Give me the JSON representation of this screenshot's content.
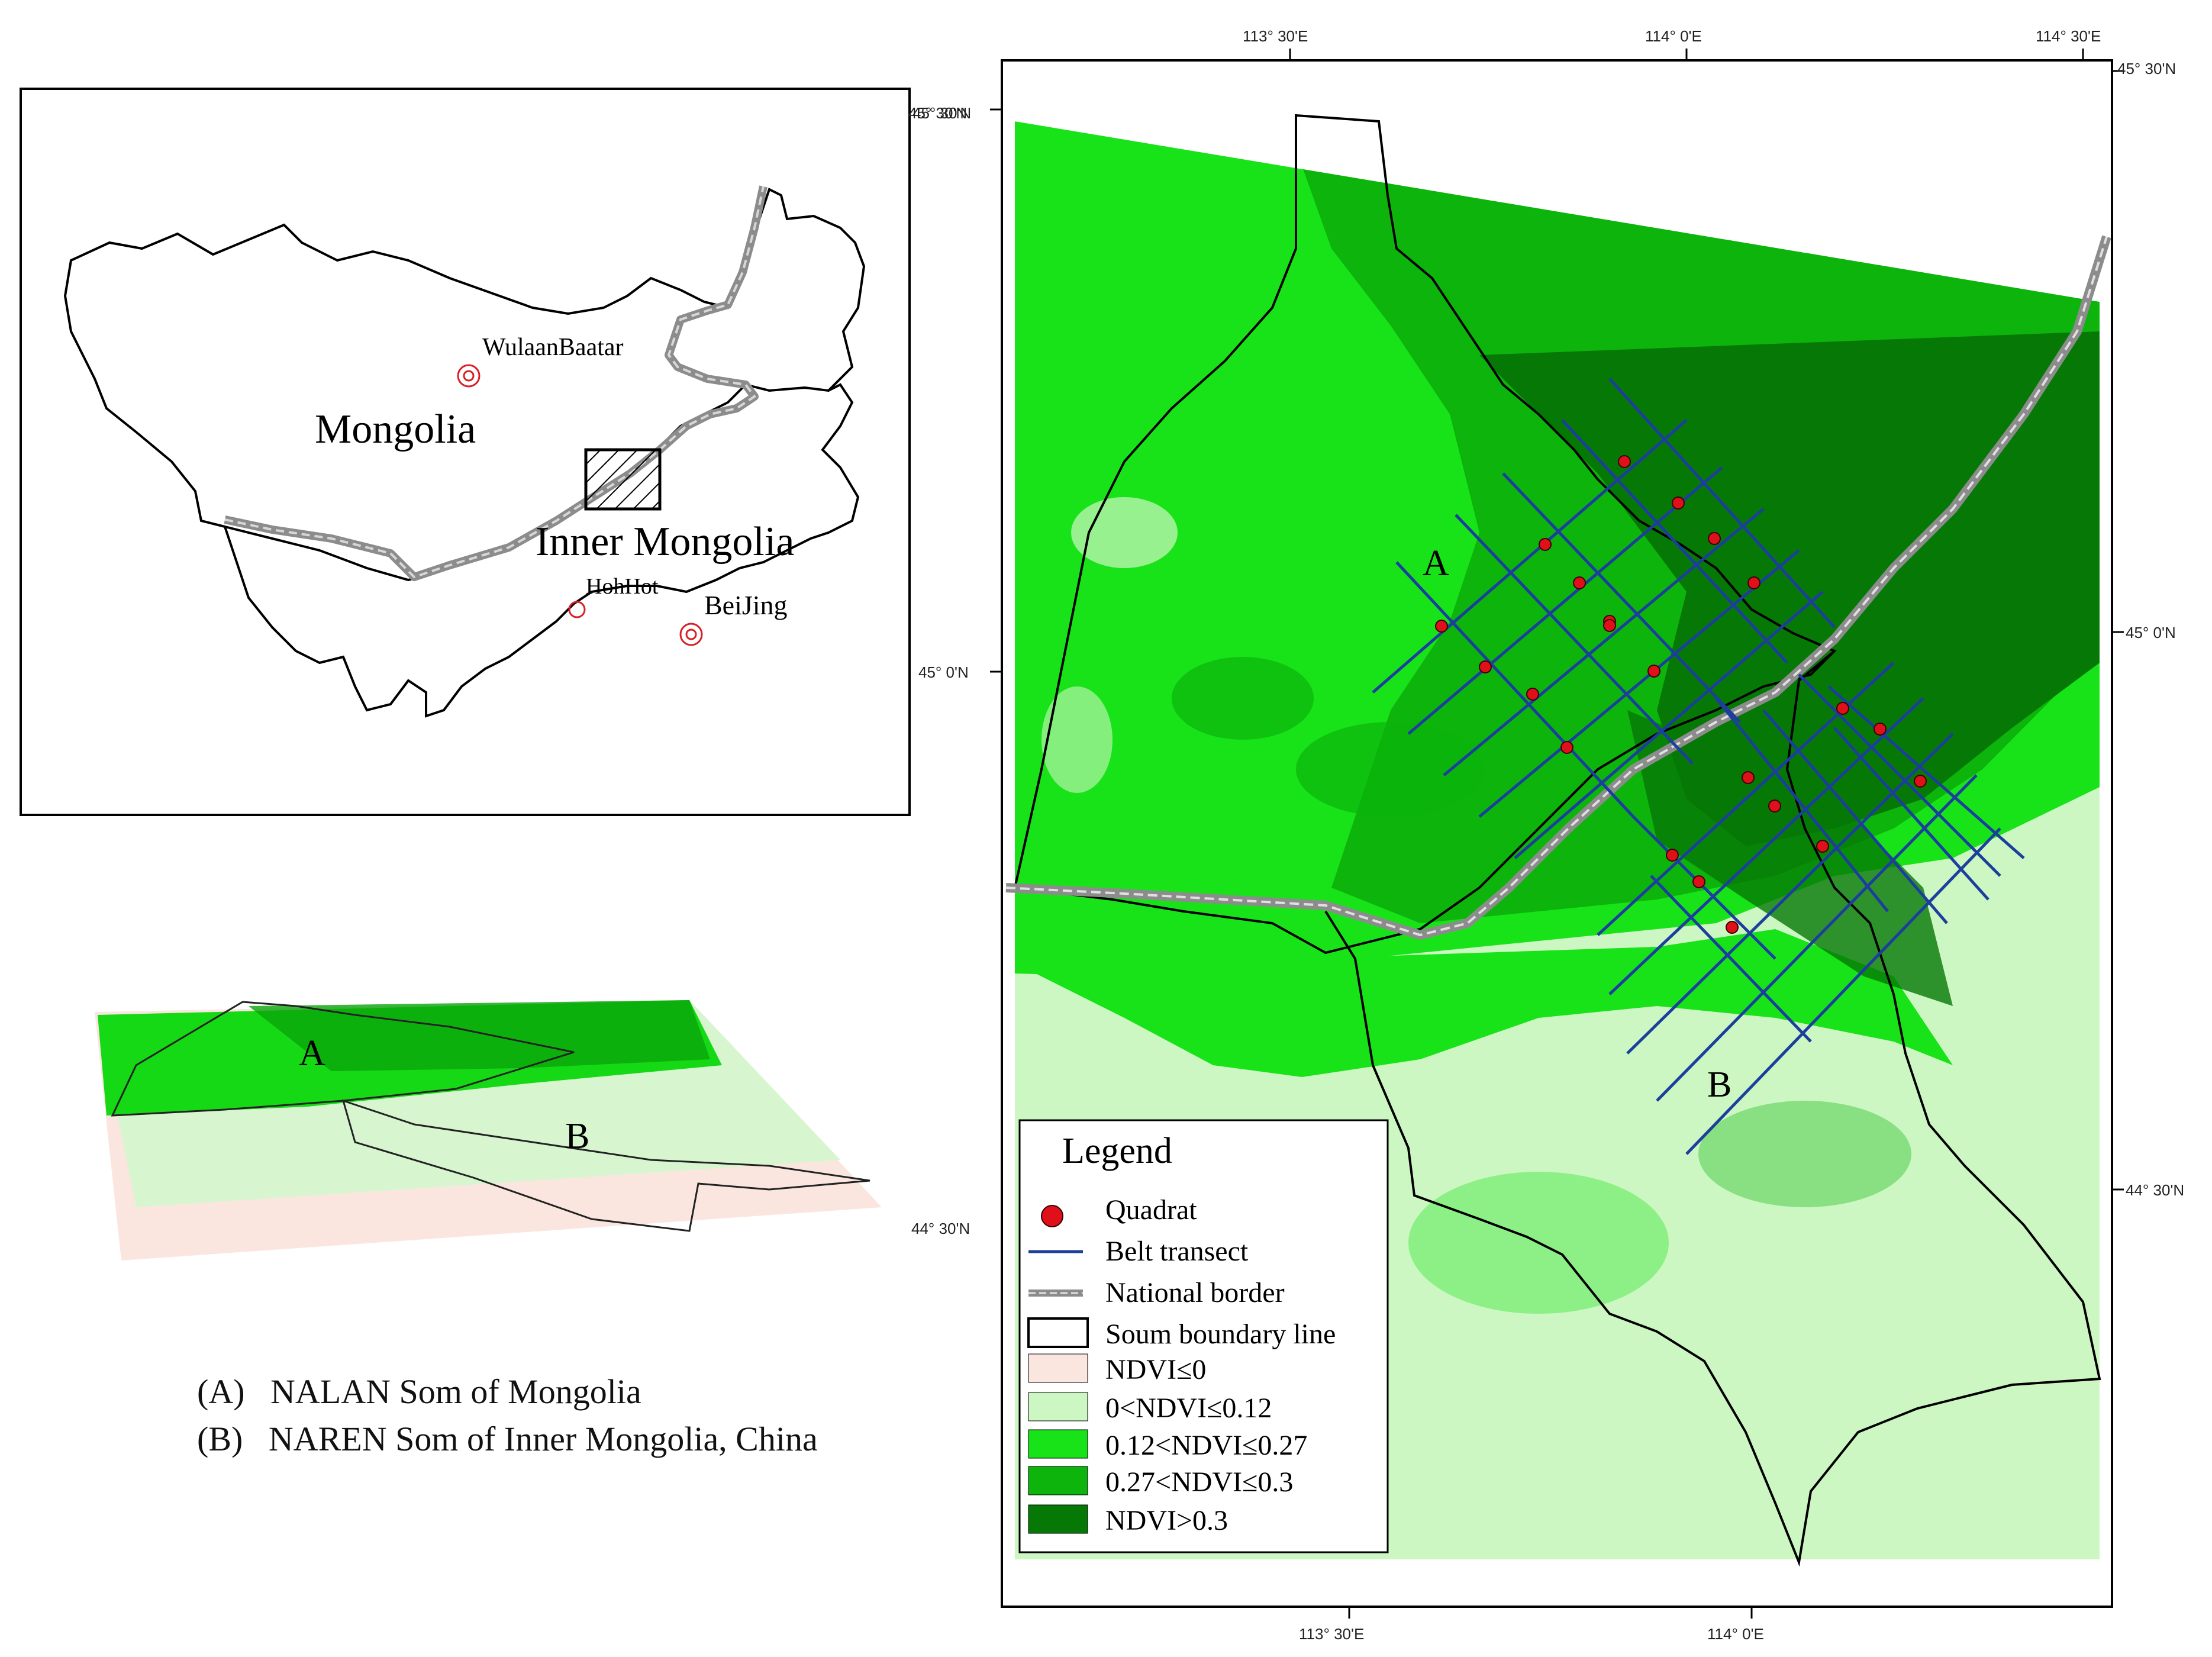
{
  "inset": {
    "labels": {
      "ulaanbaatar": "WulaanBaatar",
      "mongolia": "Mongolia",
      "inner_mongolia": "Inner Mongolia",
      "hohhot": "HohHot",
      "beijing": "BeiJing"
    },
    "latitude_label": "45° 30'N"
  },
  "perspective": {
    "labels": {
      "a": "A",
      "b": "B"
    },
    "latitude_label": "44° 30'N"
  },
  "captions": {
    "a": "(A)   NALAN Som of Mongolia",
    "b": "(B)   NAREN Som of Inner Mongolia, China"
  },
  "main_map": {
    "region_labels": {
      "a": "A",
      "b": "B"
    },
    "top_ticks": [
      "113° 30'E",
      "114° 0'E",
      "114° 30'E"
    ],
    "bottom_ticks": [
      "113° 30'E",
      "114° 0'E"
    ],
    "left_ticks": [
      "45° 30'N",
      "45° 0'N"
    ],
    "right_ticks": [
      "45° 30'N",
      "45° 0'N",
      "44° 30'N"
    ]
  },
  "legend": {
    "title": "Legend",
    "items": [
      {
        "label": "Quadrat",
        "symbol": "point",
        "color": "#e0101a"
      },
      {
        "label": "Belt transect",
        "symbol": "line",
        "color": "#1c3f9e"
      },
      {
        "label": "National border",
        "symbol": "border",
        "color": "#8c8c8c"
      },
      {
        "label": "Soum boundary line",
        "symbol": "box",
        "color": "#000000"
      },
      {
        "label": "NDVI≤0",
        "symbol": "fill",
        "color": "#fbe6df"
      },
      {
        "label": "0<NDVI≤0.12",
        "symbol": "fill",
        "color": "#cdf7c2"
      },
      {
        "label": "0.12<NDVI≤0.27",
        "symbol": "fill",
        "color": "#18e318"
      },
      {
        "label": "0.27<NDVI≤0.3",
        "symbol": "fill",
        "color": "#0cb40c"
      },
      {
        "label": "NDVI>0.3",
        "symbol": "fill",
        "color": "#067806"
      }
    ]
  }
}
